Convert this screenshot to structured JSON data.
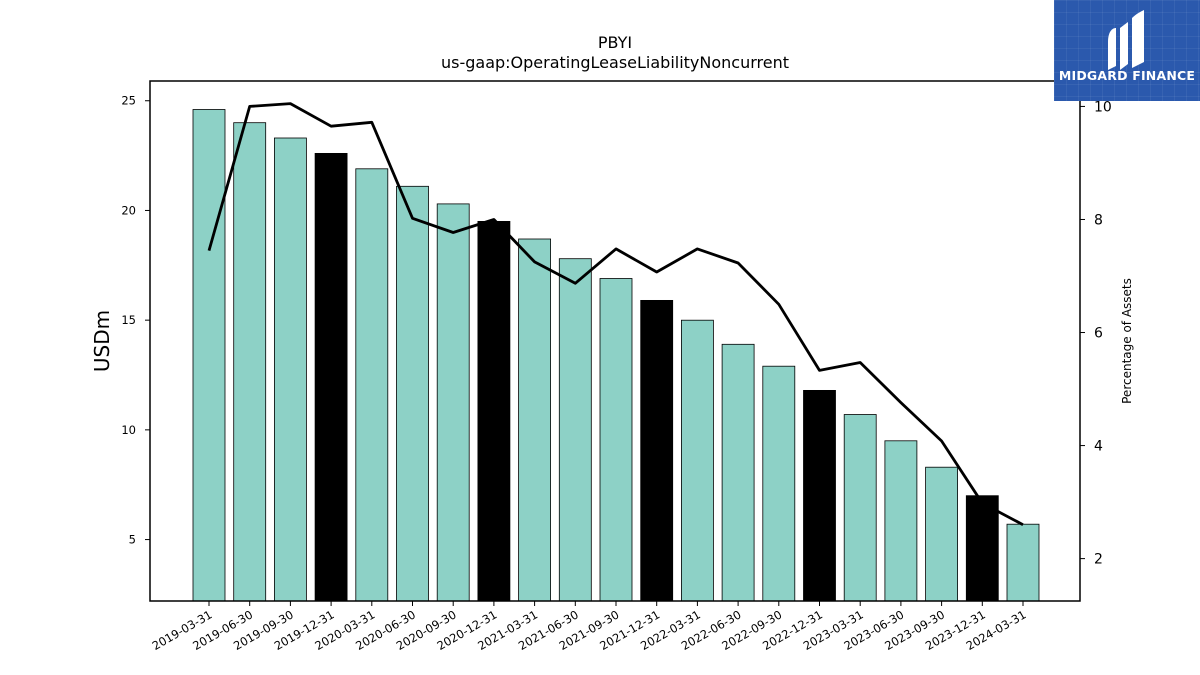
{
  "chart_data": {
    "type": "bar",
    "title": "PBYI",
    "subtitle": "us-gaap:OperatingLeaseLiabilityNoncurrent",
    "ylabel": "USDm",
    "y2label": "Percentage of Assets",
    "ylim": [
      2.2,
      25.9
    ],
    "y2lim": [
      1.25,
      10.45
    ],
    "yticks": [
      5,
      10,
      15,
      20,
      25
    ],
    "y2ticks": [
      2,
      4,
      6,
      8,
      10
    ],
    "categories": [
      "2019-03-31",
      "2019-06-30",
      "2019-09-30",
      "2019-12-31",
      "2020-03-31",
      "2020-06-30",
      "2020-09-30",
      "2020-12-31",
      "2021-03-31",
      "2021-06-30",
      "2021-09-30",
      "2021-12-31",
      "2022-03-31",
      "2022-06-30",
      "2022-09-30",
      "2022-12-31",
      "2023-03-31",
      "2023-06-30",
      "2023-09-30",
      "2023-12-31",
      "2024-03-31"
    ],
    "series": [
      {
        "type": "bar",
        "axis": "left",
        "values": [
          24.6,
          24.0,
          23.3,
          22.6,
          21.9,
          21.1,
          20.3,
          19.5,
          18.7,
          17.8,
          16.9,
          15.9,
          15.0,
          13.9,
          12.9,
          11.8,
          10.7,
          9.5,
          8.3,
          7.0,
          5.7
        ],
        "highlight": [
          3,
          7,
          11,
          15,
          19
        ]
      },
      {
        "type": "line",
        "axis": "right",
        "values": [
          7.45,
          10.0,
          10.05,
          9.65,
          9.72,
          8.02,
          7.77,
          8.0,
          7.25,
          6.87,
          7.48,
          7.07,
          7.48,
          7.23,
          6.5,
          5.33,
          5.47,
          4.76,
          4.08,
          2.98,
          2.6
        ]
      }
    ],
    "colors": {
      "bar": "#8dd1c6",
      "highlight": "#000000",
      "line": "#000000",
      "edge": "#000000"
    },
    "grid": false,
    "legend": "none"
  },
  "logo": {
    "text": "MIDGARD FINANCE",
    "icon": "midgard-logo-icon"
  }
}
